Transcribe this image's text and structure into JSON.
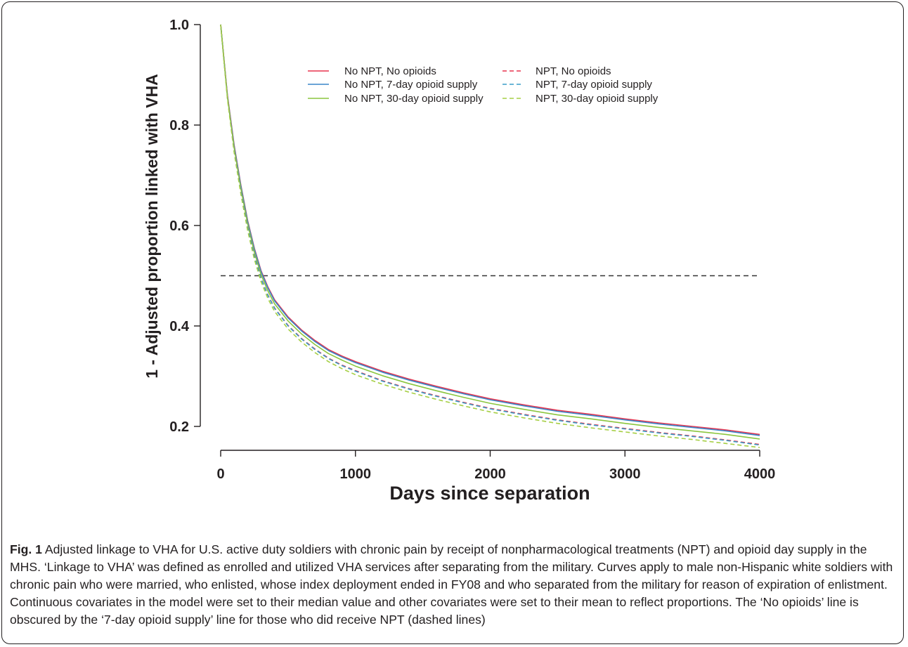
{
  "caption": {
    "label": "Fig. 1",
    "text": " Adjusted linkage to VHA for U.S. active duty soldiers with chronic pain by receipt of nonpharmacological treatments (NPT) and opioid day supply in the MHS. ‘Linkage to VHA’ was defined as enrolled and utilized VHA services after separating from the military. Curves apply to male non-Hispanic white soldiers with chronic pain who were married, who enlisted, whose index deployment ended in FY08 and who separated from the military for reason of expiration of enlistment. Continuous covariates in the model were set to their median value and other covariates were set to their mean to reflect proportions. The ‘No opioids’ line is obscured by the ‘7-day opioid supply’ line for those who did receive NPT (dashed lines)"
  },
  "chart_data": {
    "type": "line",
    "title": "",
    "xlabel": "Days since separation",
    "ylabel": "1 - Adjusted proportion linked with VHA",
    "xlim": [
      0,
      4000
    ],
    "ylim": [
      0.2,
      1.0
    ],
    "xticks": [
      "0",
      "1000",
      "2000",
      "3000",
      "4000"
    ],
    "yticks": [
      "0.2",
      "0.4",
      "0.6",
      "0.8",
      "1.0"
    ],
    "grid": false,
    "legend_position": "top-center",
    "reference_line": {
      "y": 0.5,
      "style": "dashed",
      "color": "#333333"
    },
    "x": [
      0,
      50,
      100,
      150,
      200,
      250,
      300,
      350,
      400,
      500,
      600,
      700,
      800,
      900,
      1000,
      1200,
      1400,
      1600,
      1800,
      2000,
      2250,
      2500,
      2750,
      3000,
      3250,
      3500,
      3750,
      4000
    ],
    "series": [
      {
        "name": "No NPT, No opioids",
        "color": "#e8344e",
        "dash": false,
        "values": [
          1.0,
          0.86,
          0.76,
          0.68,
          0.61,
          0.555,
          0.51,
          0.478,
          0.452,
          0.418,
          0.392,
          0.371,
          0.353,
          0.34,
          0.329,
          0.31,
          0.294,
          0.28,
          0.267,
          0.255,
          0.243,
          0.232,
          0.224,
          0.215,
          0.207,
          0.2,
          0.193,
          0.184
        ]
      },
      {
        "name": "No NPT, 7-day opioid supply",
        "color": "#3a86c8",
        "dash": false,
        "values": [
          1.0,
          0.858,
          0.758,
          0.678,
          0.608,
          0.553,
          0.508,
          0.476,
          0.45,
          0.416,
          0.39,
          0.369,
          0.351,
          0.338,
          0.327,
          0.308,
          0.292,
          0.278,
          0.265,
          0.253,
          0.241,
          0.23,
          0.222,
          0.213,
          0.205,
          0.198,
          0.191,
          0.182
        ]
      },
      {
        "name": "No NPT, 30-day opioid supply",
        "color": "#8cc63f",
        "dash": false,
        "values": [
          1.0,
          0.856,
          0.754,
          0.673,
          0.603,
          0.547,
          0.502,
          0.47,
          0.444,
          0.41,
          0.384,
          0.363,
          0.345,
          0.332,
          0.32,
          0.301,
          0.285,
          0.271,
          0.258,
          0.246,
          0.234,
          0.223,
          0.215,
          0.206,
          0.198,
          0.191,
          0.184,
          0.175
        ]
      },
      {
        "name": "NPT, No opioids",
        "color": "#e8344e",
        "dash": true,
        "values": [
          1.0,
          0.855,
          0.75,
          0.668,
          0.597,
          0.54,
          0.495,
          0.462,
          0.436,
          0.401,
          0.375,
          0.354,
          0.336,
          0.322,
          0.311,
          0.291,
          0.275,
          0.261,
          0.248,
          0.236,
          0.224,
          0.213,
          0.204,
          0.196,
          0.188,
          0.181,
          0.173,
          0.164
        ]
      },
      {
        "name": "NPT, 7-day opioid supply",
        "color": "#3a9ec8",
        "dash": true,
        "values": [
          1.0,
          0.854,
          0.749,
          0.667,
          0.596,
          0.539,
          0.494,
          0.461,
          0.435,
          0.4,
          0.374,
          0.353,
          0.335,
          0.321,
          0.31,
          0.29,
          0.274,
          0.26,
          0.247,
          0.235,
          0.223,
          0.212,
          0.203,
          0.195,
          0.187,
          0.18,
          0.172,
          0.163
        ]
      },
      {
        "name": "NPT, 30-day opioid supply",
        "color": "#a6cf45",
        "dash": true,
        "values": [
          1.0,
          0.852,
          0.745,
          0.662,
          0.59,
          0.533,
          0.488,
          0.455,
          0.429,
          0.394,
          0.368,
          0.347,
          0.329,
          0.315,
          0.303,
          0.284,
          0.268,
          0.254,
          0.241,
          0.229,
          0.217,
          0.206,
          0.197,
          0.189,
          0.181,
          0.174,
          0.166,
          0.158
        ]
      }
    ]
  }
}
